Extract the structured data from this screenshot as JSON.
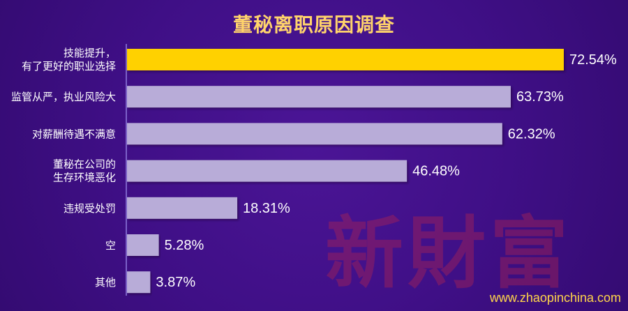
{
  "chart_data": {
    "type": "bar",
    "title": "董秘离职原因调查",
    "categories": [
      "技能提升，\n有了更好的职业选择",
      "监管从严，执业风险大",
      "对薪酬待遇不满意",
      "董秘在公司的\n生存环境恶化",
      "违规受处罚",
      "空",
      "其他"
    ],
    "values": [
      72.54,
      63.73,
      62.32,
      46.48,
      18.31,
      5.28,
      3.87
    ],
    "value_labels": [
      "72.54%",
      "63.73%",
      "62.32%",
      "46.48%",
      "18.31%",
      "5.28%",
      "3.87%"
    ],
    "xlim": [
      0,
      80
    ],
    "grid": false,
    "legend": "none",
    "colors": {
      "highlight": "#ffd100",
      "bar": "#b8acd8",
      "label_text": "#ffffff",
      "title_text": "#ffd36b",
      "background": "#3f0f86"
    }
  },
  "watermark": "新財富",
  "website": "www.zhaopinchina.com"
}
